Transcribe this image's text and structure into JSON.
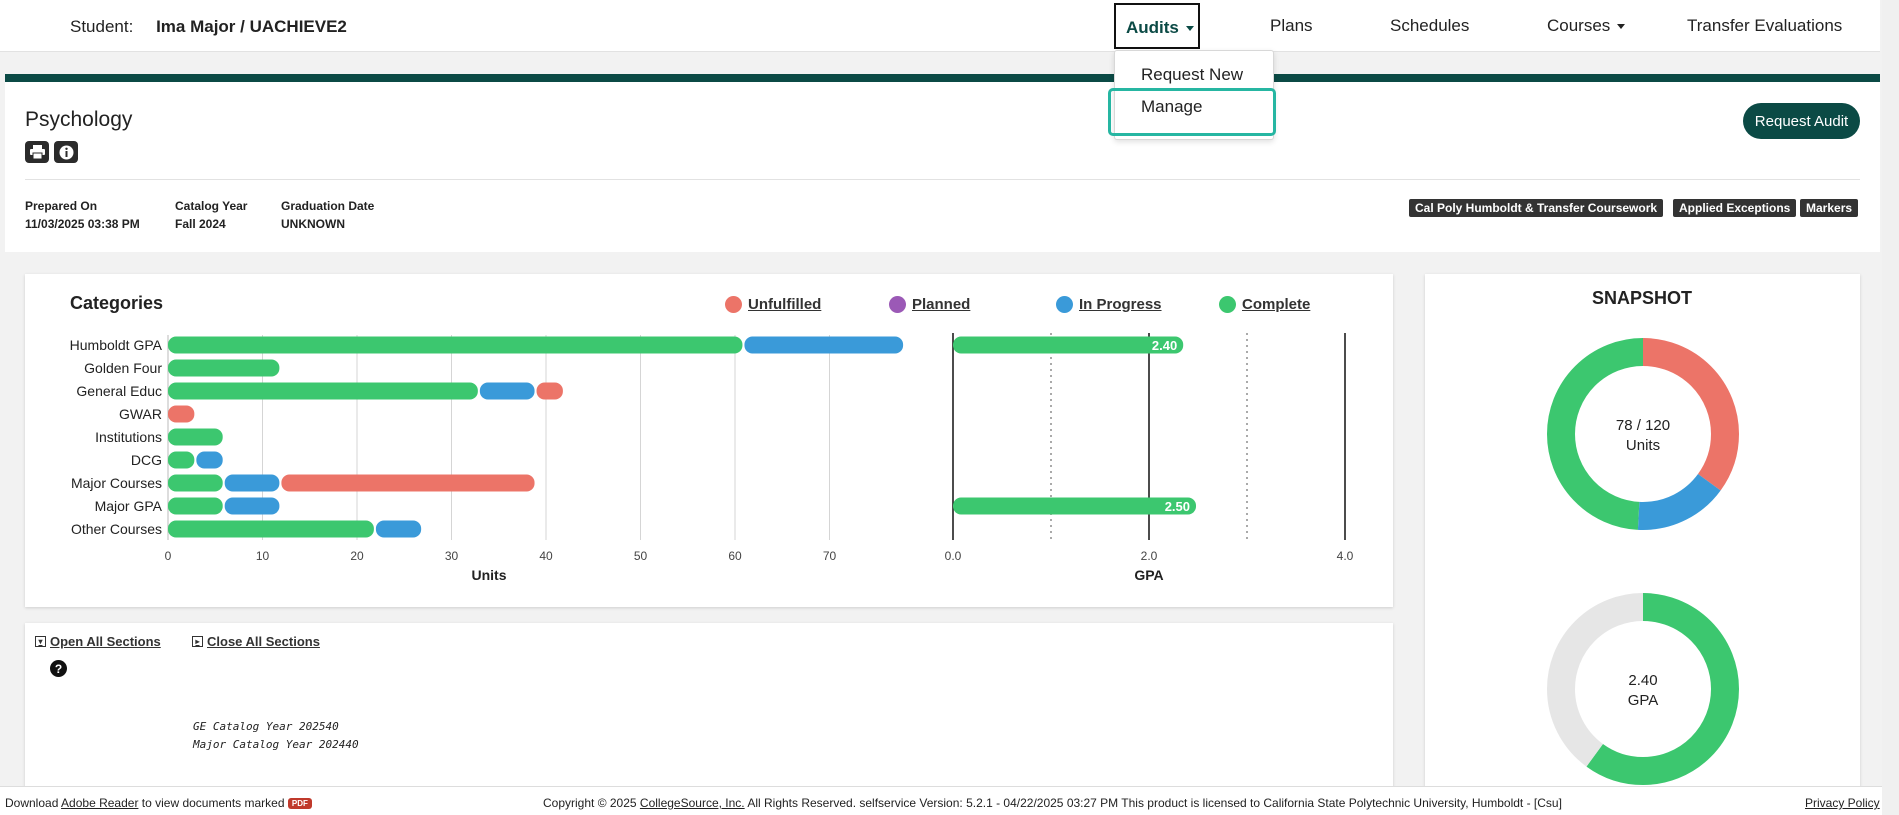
{
  "header": {
    "student_label": "Student:",
    "student_value": "Ima Major / UACHIEVE2",
    "nav": {
      "audits": "Audits",
      "plans": "Plans",
      "schedules": "Schedules",
      "courses": "Courses",
      "transfer": "Transfer Evaluations"
    }
  },
  "audits_menu": {
    "items": [
      "Request New",
      "Manage"
    ]
  },
  "audit": {
    "title": "Psychology",
    "request_audit_label": "Request Audit",
    "meta": [
      {
        "label": "Prepared On",
        "value": "11/03/2025 03:38 PM"
      },
      {
        "label": "Catalog Year",
        "value": "Fall 2024"
      },
      {
        "label": "Graduation Date",
        "value": "UNKNOWN"
      }
    ],
    "tags": [
      "Cal Poly Humboldt & Transfer Coursework",
      "Applied Exceptions",
      "Markers"
    ]
  },
  "chart_data": [
    {
      "type": "bar",
      "title": "Categories",
      "xlabel": "Units",
      "legend": [
        "Unfulfilled",
        "Planned",
        "In Progress",
        "Complete"
      ],
      "colors": {
        "Unfulfilled": "#ec7468",
        "Planned": "#9b59b6",
        "In Progress": "#3a9ad9",
        "Complete": "#3cc76f"
      },
      "categories": [
        "Humboldt GPA",
        "Golden Four",
        "General Educ",
        "GWAR",
        "Institutions",
        "DCG",
        "Major Courses",
        "Major GPA",
        "Other Courses"
      ],
      "series": [
        {
          "name": "Complete",
          "values": [
            61,
            12,
            33,
            0,
            6,
            3,
            6,
            6,
            22
          ]
        },
        {
          "name": "In Progress",
          "values": [
            17,
            0,
            6,
            0,
            0,
            3,
            6,
            6,
            5
          ]
        },
        {
          "name": "Unfulfilled",
          "values": [
            0,
            0,
            3,
            3,
            0,
            0,
            27,
            0,
            0
          ]
        }
      ],
      "xticks": [
        0,
        10,
        20,
        30,
        40,
        50,
        60,
        70
      ],
      "xlim": [
        0,
        80
      ]
    },
    {
      "type": "bar",
      "xlabel": "GPA",
      "categories": [
        "Humboldt GPA",
        "Major GPA"
      ],
      "values": [
        2.4,
        2.5
      ],
      "labels": [
        "2.40",
        "2.50"
      ],
      "xticks": [
        "0.0",
        "2.0",
        "4.0"
      ],
      "xlim": [
        0,
        4
      ]
    },
    {
      "type": "pie",
      "title": "SNAPSHOT",
      "center_top": "78 / 120",
      "center_bottom": "Units",
      "slices": [
        {
          "name": "Complete",
          "value": 59,
          "color": "#3cc76f"
        },
        {
          "name": "In Progress",
          "value": 19,
          "color": "#3a9ad9"
        },
        {
          "name": "Unfulfilled",
          "value": 42,
          "color": "#ec7468"
        }
      ]
    },
    {
      "type": "pie",
      "center_top": "2.40",
      "center_bottom": "GPA",
      "slices": [
        {
          "name": "GPA",
          "value": 2.4,
          "color": "#3cc76f"
        },
        {
          "name": "Remaining",
          "value": 1.6,
          "color": "#e6e6e6"
        }
      ]
    }
  ],
  "sections": {
    "open_all": "Open All Sections",
    "close_all": "Close All Sections",
    "lines": [
      "GE Catalog Year 202540",
      "Major Catalog Year 202440"
    ]
  },
  "footer": {
    "download_pre": "Download",
    "adobe": "Adobe Reader",
    "download_post": "to view documents marked",
    "pdf_badge": "PDF",
    "copyright_pre": "Copyright © 2025",
    "collegesource": "CollegeSource, Inc.",
    "copyright_post": "All Rights Reserved. selfservice Version: 5.2.1 - 04/22/2025 03:27 PM This product is licensed to California State Polytechnic University, Humboldt - [Csu]",
    "privacy": "Privacy Policy"
  }
}
